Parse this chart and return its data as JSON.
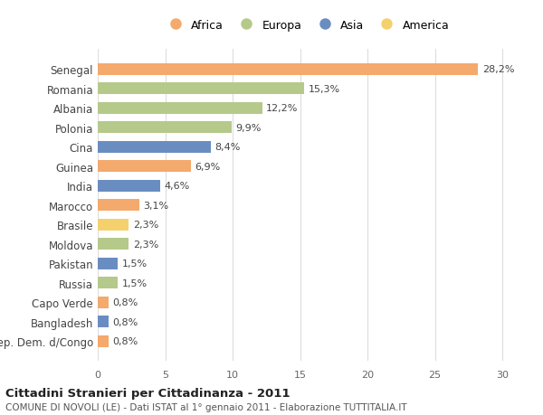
{
  "countries": [
    "Senegal",
    "Romania",
    "Albania",
    "Polonia",
    "Cina",
    "Guinea",
    "India",
    "Marocco",
    "Brasile",
    "Moldova",
    "Pakistan",
    "Russia",
    "Capo Verde",
    "Bangladesh",
    "Rep. Dem. d/Congo"
  ],
  "values": [
    28.2,
    15.3,
    12.2,
    9.9,
    8.4,
    6.9,
    4.6,
    3.1,
    2.3,
    2.3,
    1.5,
    1.5,
    0.8,
    0.8,
    0.8
  ],
  "labels": [
    "28,2%",
    "15,3%",
    "12,2%",
    "9,9%",
    "8,4%",
    "6,9%",
    "4,6%",
    "3,1%",
    "2,3%",
    "2,3%",
    "1,5%",
    "1,5%",
    "0,8%",
    "0,8%",
    "0,8%"
  ],
  "continents": [
    "Africa",
    "Europa",
    "Europa",
    "Europa",
    "Asia",
    "Africa",
    "Asia",
    "Africa",
    "America",
    "Europa",
    "Asia",
    "Europa",
    "Africa",
    "Asia",
    "Africa"
  ],
  "colors": {
    "Africa": "#F4A96D",
    "Europa": "#B5C98A",
    "Asia": "#6A8DC1",
    "America": "#F5D16E"
  },
  "legend_order": [
    "Africa",
    "Europa",
    "Asia",
    "America"
  ],
  "title": "Cittadini Stranieri per Cittadinanza - 2011",
  "subtitle": "COMUNE DI NOVOLI (LE) - Dati ISTAT al 1° gennaio 2011 - Elaborazione TUTTITALIA.IT",
  "xlim": [
    0,
    31
  ],
  "xticks": [
    0,
    5,
    10,
    15,
    20,
    25,
    30
  ],
  "background_color": "#ffffff",
  "grid_color": "#dddddd"
}
